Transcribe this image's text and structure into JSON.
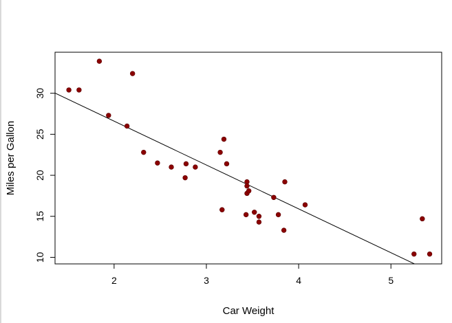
{
  "chart_data": {
    "type": "scatter",
    "title": "",
    "xlabel": "Car Weight",
    "ylabel": "Miles per Gallon",
    "xlim": [
      1.36,
      5.55
    ],
    "ylim": [
      9.2,
      35.0
    ],
    "xticks": [
      2,
      3,
      4,
      5
    ],
    "yticks": [
      10,
      15,
      20,
      25,
      30
    ],
    "grid": false,
    "legend": "none",
    "point_color": "#8b0000",
    "line_color": "#000000",
    "points": [
      {
        "x": 1.51,
        "y": 30.4
      },
      {
        "x": 1.62,
        "y": 30.4
      },
      {
        "x": 1.84,
        "y": 33.9
      },
      {
        "x": 1.94,
        "y": 27.3
      },
      {
        "x": 2.14,
        "y": 26.0
      },
      {
        "x": 2.2,
        "y": 32.4
      },
      {
        "x": 2.32,
        "y": 22.8
      },
      {
        "x": 2.47,
        "y": 21.5
      },
      {
        "x": 2.62,
        "y": 21.0
      },
      {
        "x": 2.77,
        "y": 19.7
      },
      {
        "x": 2.78,
        "y": 21.4
      },
      {
        "x": 2.88,
        "y": 21.0
      },
      {
        "x": 3.15,
        "y": 22.8
      },
      {
        "x": 3.17,
        "y": 15.8
      },
      {
        "x": 3.19,
        "y": 24.4
      },
      {
        "x": 3.22,
        "y": 21.4
      },
      {
        "x": 3.44,
        "y": 19.2
      },
      {
        "x": 3.44,
        "y": 18.7
      },
      {
        "x": 3.44,
        "y": 17.8
      },
      {
        "x": 3.46,
        "y": 18.1
      },
      {
        "x": 3.43,
        "y": 15.2
      },
      {
        "x": 3.52,
        "y": 15.5
      },
      {
        "x": 3.57,
        "y": 15.0
      },
      {
        "x": 3.57,
        "y": 14.3
      },
      {
        "x": 3.73,
        "y": 17.3
      },
      {
        "x": 3.78,
        "y": 15.2
      },
      {
        "x": 3.84,
        "y": 13.3
      },
      {
        "x": 3.85,
        "y": 19.2
      },
      {
        "x": 4.07,
        "y": 16.4
      },
      {
        "x": 5.25,
        "y": 10.4
      },
      {
        "x": 5.34,
        "y": 14.7
      },
      {
        "x": 5.42,
        "y": 10.4
      }
    ],
    "regression_line": {
      "intercept": 37.285,
      "slope": -5.344
    }
  }
}
